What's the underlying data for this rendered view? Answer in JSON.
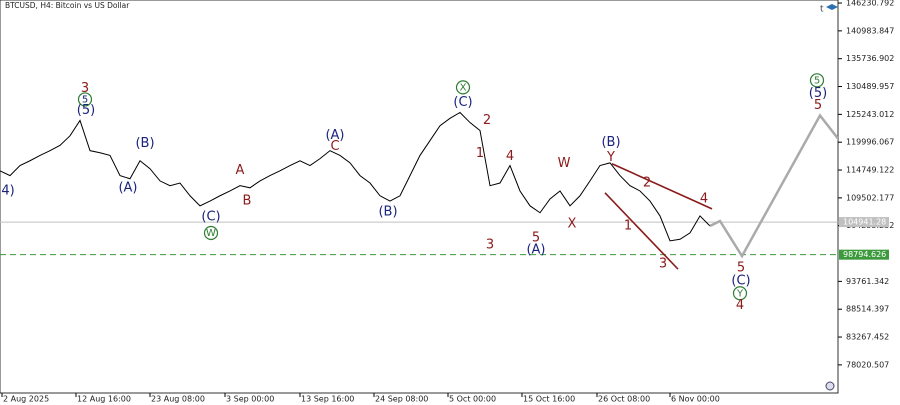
{
  "chart_data": {
    "type": "line",
    "title": "BTCUSD, H4:  Bitcoin vs US Dollar",
    "xlim": [
      0,
      84
    ],
    "ylim": [
      72720,
      146800
    ],
    "yticks": [
      146230.792,
      140983.847,
      135736.902,
      130489.957,
      125243.012,
      119996.067,
      114749.122,
      109502.177,
      104255.232,
      93761.342,
      88514.397,
      83267.452,
      78020.507
    ],
    "xticks": [
      {
        "value": 0.2,
        "label": "2 Aug 2025"
      },
      {
        "value": 7.6,
        "label": "12 Aug 16:00"
      },
      {
        "value": 15,
        "label": "23 Aug 08:00"
      },
      {
        "value": 22.5,
        "label": "3 Sep 00:00"
      },
      {
        "value": 30,
        "label": "13 Sep 16:00"
      },
      {
        "value": 37.4,
        "label": "24 Sep 08:00"
      },
      {
        "value": 44.8,
        "label": "5 Oct 00:00"
      },
      {
        "value": 52.2,
        "label": "15 Oct 16:00"
      },
      {
        "value": 59.7,
        "label": "26 Oct 08:00"
      },
      {
        "value": 67,
        "label": "6 Nov 00:00"
      }
    ],
    "series": [
      {
        "name": "BTCUSD",
        "color": "#000000",
        "values": [
          114600,
          113700,
          115600,
          116500,
          117500,
          118400,
          119400,
          121200,
          124100,
          118400,
          118000,
          117500,
          113700,
          113100,
          116500,
          115000,
          112700,
          111800,
          112300,
          109900,
          108000,
          108900,
          109900,
          110800,
          111800,
          111400,
          112700,
          113700,
          114600,
          115600,
          116500,
          115600,
          116900,
          118400,
          117500,
          116100,
          113700,
          112300,
          109900,
          108900,
          109900,
          113700,
          117500,
          120300,
          123100,
          124500,
          125600,
          123700,
          122200,
          111800,
          112300,
          115600,
          110800,
          108000,
          106700,
          109300,
          110800,
          108000,
          109900,
          112700,
          115600,
          116100,
          113700,
          111800,
          110800,
          108900,
          106100,
          101400,
          101700,
          102900,
          106100,
          104200
        ]
      },
      {
        "name": "Projection",
        "color": "#aaaaaa",
        "x": [
          71,
          72,
          74.2,
          82,
          84
        ],
        "values": [
          104200,
          105150,
          98530,
          125030,
          120200
        ]
      }
    ],
    "levels": [
      {
        "value": 98794.626,
        "color": "#3c9a3c"
      },
      {
        "value": 104941.28,
        "color": "#c0c0c0"
      }
    ],
    "trendlines": [
      {
        "color": "#8b1a1a",
        "x": [
          61.2,
          71.2
        ],
        "y": [
          115940,
          107430
        ]
      },
      {
        "color": "#8b1a1a",
        "x": [
          60.5,
          67.8
        ],
        "y": [
          110450,
          96070
        ]
      }
    ],
    "annotations": [
      {
        "text": "3",
        "color": "#8b1a1a",
        "x": 8.5,
        "y": 130140
      },
      {
        "text": "5",
        "color": "#1a237e",
        "circle": true,
        "x": 8.5,
        "y": 128060
      },
      {
        "text": "(5)",
        "color": "#1a237e",
        "x": 8.6,
        "y": 126000
      },
      {
        "text": "(B)",
        "color": "#1a237e",
        "x": 14.5,
        "y": 119730
      },
      {
        "text": "(A)",
        "color": "#1a237e",
        "x": 12.8,
        "y": 111400
      },
      {
        "text": "(C)",
        "color": "#1a237e",
        "x": 21.1,
        "y": 105910
      },
      {
        "text": "W",
        "color": "#2e7d32",
        "circle": true,
        "x": 21.1,
        "y": 102880
      },
      {
        "text": "A",
        "color": "#8b1a1a",
        "x": 24,
        "y": 114620
      },
      {
        "text": "B",
        "color": "#8b1a1a",
        "x": 24.7,
        "y": 108940
      },
      {
        "text": "(A)",
        "color": "#1a237e",
        "x": 33.5,
        "y": 121240
      },
      {
        "text": "C",
        "color": "#8b1a1a",
        "x": 33.5,
        "y": 119160
      },
      {
        "text": "(B)",
        "color": "#1a237e",
        "x": 38.8,
        "y": 106860
      },
      {
        "text": "X",
        "color": "#2e7d32",
        "circle": true,
        "x": 46.3,
        "y": 130330
      },
      {
        "text": "(C)",
        "color": "#1a237e",
        "x": 46.3,
        "y": 127490
      },
      {
        "text": "2",
        "color": "#8b1a1a",
        "x": 48.7,
        "y": 124080
      },
      {
        "text": "1",
        "color": "#8b1a1a",
        "x": 48,
        "y": 117840
      },
      {
        "text": "4",
        "color": "#8b1a1a",
        "x": 51,
        "y": 117270
      },
      {
        "text": "3",
        "color": "#8b1a1a",
        "x": 49,
        "y": 100610
      },
      {
        "text": "5",
        "color": "#8b1a1a",
        "x": 53.6,
        "y": 101940
      },
      {
        "text": "(A)",
        "color": "#1a237e",
        "x": 53.6,
        "y": 99660
      },
      {
        "text": "W",
        "color": "#8b1a1a",
        "x": 56.4,
        "y": 115940
      },
      {
        "text": "X",
        "color": "#8b1a1a",
        "x": 57.2,
        "y": 104590
      },
      {
        "text": "(B)",
        "color": "#1a237e",
        "x": 61.1,
        "y": 119920
      },
      {
        "text": "Y",
        "color": "#8b1a1a",
        "x": 61.1,
        "y": 117080
      },
      {
        "text": "2",
        "color": "#8b1a1a",
        "x": 64.7,
        "y": 112350
      },
      {
        "text": "1",
        "color": "#8b1a1a",
        "x": 62.8,
        "y": 104210
      },
      {
        "text": "4",
        "color": "#8b1a1a",
        "x": 70.4,
        "y": 109320
      },
      {
        "text": "3",
        "color": "#8b1a1a",
        "x": 66.3,
        "y": 97010
      },
      {
        "text": "5",
        "color": "#8b1a1a",
        "x": 74.1,
        "y": 96260
      },
      {
        "text": "(C)",
        "color": "#1a237e",
        "x": 74.1,
        "y": 93800
      },
      {
        "text": "Y",
        "color": "#2e7d32",
        "circle": true,
        "x": 74,
        "y": 91520
      },
      {
        "text": "4",
        "color": "#8b1a1a",
        "x": 74,
        "y": 89250
      },
      {
        "text": "5",
        "color": "#2e7d32",
        "circle": true,
        "x": 81.7,
        "y": 131660
      },
      {
        "text": "(5)",
        "color": "#1a237e",
        "x": 81.8,
        "y": 129200
      },
      {
        "text": "5",
        "color": "#8b1a1a",
        "x": 81.8,
        "y": 126920
      },
      {
        "text": "4)",
        "color": "#1a237e",
        "x": 0.8,
        "y": 110830
      }
    ]
  }
}
